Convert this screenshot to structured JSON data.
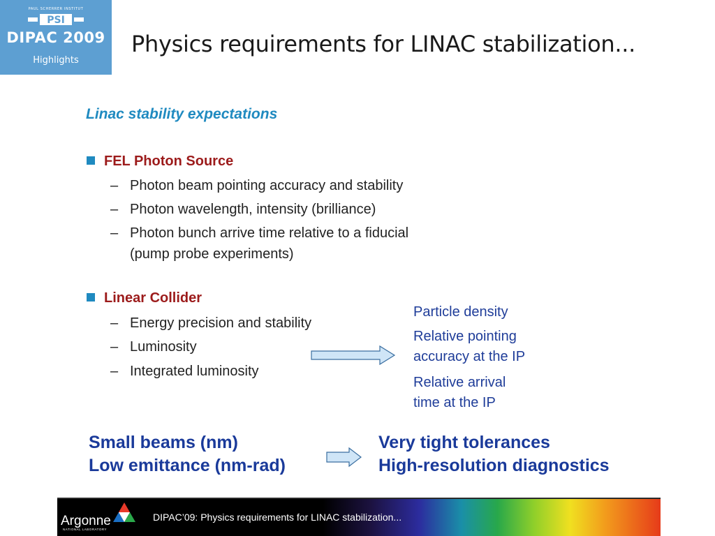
{
  "logo": {
    "institute": "PAUL SCHERRER INSTITUT",
    "psi": "PSI",
    "event": "DIPAC 2009",
    "tagline": "Highlights"
  },
  "title": "Physics requirements for LINAC stabilization...",
  "subtitle": "Linac stability expectations",
  "sections": [
    {
      "heading": "FEL Photon Source",
      "items": [
        "Photon beam pointing accuracy and stability",
        "Photon wavelength, intensity (brilliance)",
        "Photon bunch arrive time relative to a fiducial",
        "(pump probe experiments)"
      ]
    },
    {
      "heading": "Linear Collider",
      "items": [
        "Energy precision and stability",
        "Luminosity",
        "Integrated luminosity"
      ]
    }
  ],
  "dash": "–",
  "luminosity_notes": [
    "Particle density",
    "Relative pointing",
    "accuracy at the IP",
    "Relative arrival",
    "time at the IP"
  ],
  "bottom_left": [
    "Small beams (nm)",
    "Low emittance (nm-rad)"
  ],
  "bottom_right": [
    "Very tight tolerances",
    "High-resolution diagnostics"
  ],
  "footer": {
    "org": "Argonne",
    "org_sub": "NATIONAL LABORATORY",
    "text": "DIPAC’09: Physics requirements for LINAC stabilization..."
  },
  "colors": {
    "accent_blue": "#1f8ac0",
    "heading_red": "#9c1b1b",
    "note_blue": "#1f3d99",
    "bottom_blue": "#1a3a9a",
    "arrow_fill": "#cfe5f7",
    "arrow_stroke": "#3a6ea0"
  }
}
